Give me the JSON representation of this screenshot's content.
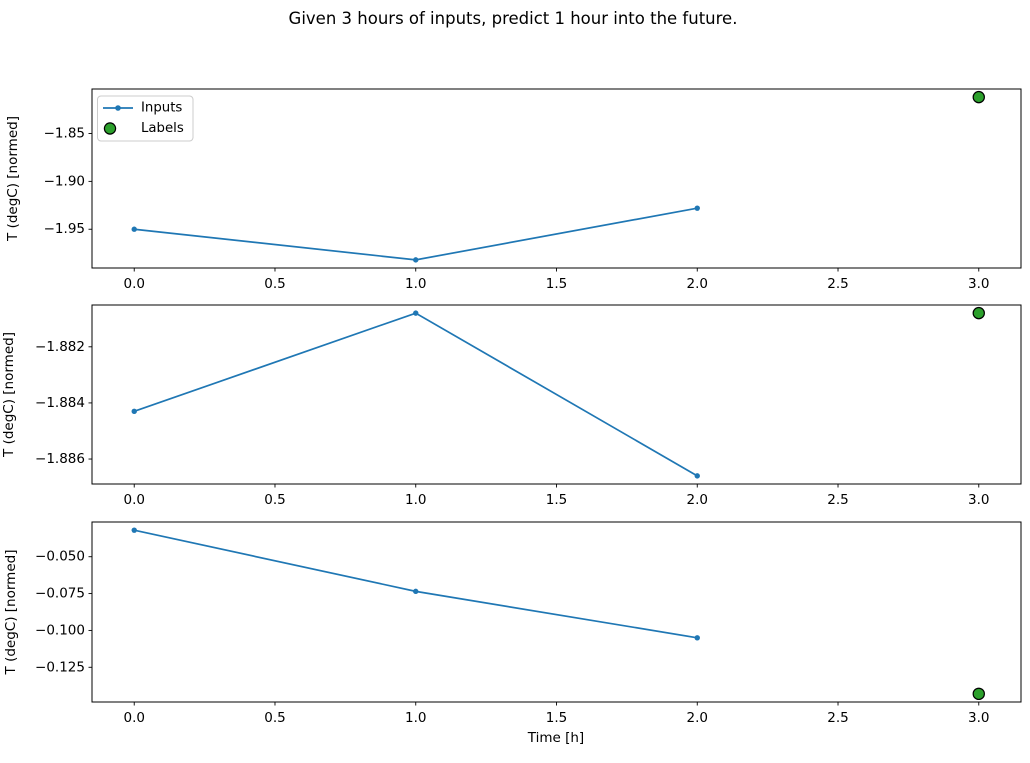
{
  "figure": {
    "title": "Given 3 hours of inputs, predict 1 hour into the future.",
    "xlabel": "Time [h]",
    "background_color": "#ffffff",
    "inputs_color": "#1f77b4",
    "labels_color": "#2ca02c",
    "labels_edge_color": "#000000",
    "legend_border_color": "#cccccc"
  },
  "chart_data": [
    {
      "type": "line",
      "title": "",
      "ylabel": "T (degC) [normed]",
      "series": [
        {
          "name": "Inputs",
          "style": "line+marker",
          "color": "#1f77b4",
          "x": [
            0,
            1,
            2
          ],
          "values": [
            -1.95,
            -1.982,
            -1.928
          ]
        },
        {
          "name": "Labels",
          "style": "scatter",
          "color": "#2ca02c",
          "edge_color": "#000000",
          "x": [
            3
          ],
          "values": [
            -1.812
          ]
        }
      ],
      "xticks": [
        0.0,
        0.5,
        1.0,
        1.5,
        2.0,
        2.5,
        3.0
      ],
      "xtick_decimals": 1,
      "yticks": [
        -1.85,
        -1.9,
        -1.95
      ],
      "ytick_decimals": 2,
      "xlim": [
        -0.15,
        3.15
      ],
      "y_margin": 0.05,
      "grid": false,
      "legend": true,
      "legend_position": "upper left"
    },
    {
      "type": "line",
      "title": "",
      "ylabel": "T (degC) [normed]",
      "series": [
        {
          "name": "Inputs",
          "style": "line+marker",
          "color": "#1f77b4",
          "x": [
            0,
            1,
            2
          ],
          "values": [
            -1.8843,
            -1.8808,
            -1.8866
          ]
        },
        {
          "name": "Labels",
          "style": "scatter",
          "color": "#2ca02c",
          "edge_color": "#000000",
          "x": [
            3
          ],
          "values": [
            -1.8808
          ]
        }
      ],
      "xticks": [
        0.0,
        0.5,
        1.0,
        1.5,
        2.0,
        2.5,
        3.0
      ],
      "xtick_decimals": 1,
      "yticks": [
        -1.882,
        -1.884,
        -1.886
      ],
      "ytick_decimals": 3,
      "xlim": [
        -0.15,
        3.15
      ],
      "y_margin": 0.05,
      "grid": false,
      "legend": false
    },
    {
      "type": "line",
      "title": "",
      "ylabel": "T (degC) [normed]",
      "series": [
        {
          "name": "Inputs",
          "style": "line+marker",
          "color": "#1f77b4",
          "x": [
            0,
            1,
            2
          ],
          "values": [
            -0.032,
            -0.0735,
            -0.105
          ]
        },
        {
          "name": "Labels",
          "style": "scatter",
          "color": "#2ca02c",
          "edge_color": "#000000",
          "x": [
            3
          ],
          "values": [
            -0.143
          ]
        }
      ],
      "xticks": [
        0.0,
        0.5,
        1.0,
        1.5,
        2.0,
        2.5,
        3.0
      ],
      "xtick_decimals": 1,
      "yticks": [
        -0.05,
        -0.075,
        -0.1,
        -0.125
      ],
      "ytick_decimals": 3,
      "xlim": [
        -0.15,
        3.15
      ],
      "y_margin": 0.05,
      "grid": false,
      "legend": false
    }
  ]
}
